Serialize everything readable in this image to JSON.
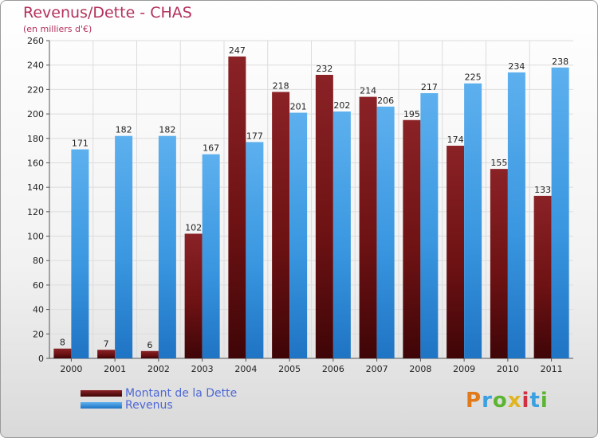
{
  "chart_data": {
    "type": "bar",
    "title": "Revenus/Dette - CHAS",
    "subtitle": "(en milliers d'€)",
    "categories": [
      "2000",
      "2001",
      "2002",
      "2003",
      "2004",
      "2005",
      "2006",
      "2007",
      "2008",
      "2009",
      "2010",
      "2011"
    ],
    "series": [
      {
        "name": "Montant de la Dette",
        "color": "#7a1416",
        "values": [
          8,
          7,
          6,
          102,
          247,
          218,
          232,
          214,
          195,
          174,
          155,
          133
        ]
      },
      {
        "name": "Revenus",
        "color": "#3a97e0",
        "values": [
          171,
          182,
          182,
          167,
          177,
          201,
          202,
          206,
          217,
          225,
          234,
          238
        ]
      }
    ],
    "ylim": [
      0,
      260
    ],
    "yticks": [
      0,
      20,
      40,
      60,
      80,
      100,
      120,
      140,
      160,
      180,
      200,
      220,
      240,
      260
    ],
    "grid": true,
    "legend_position": "bottom-left"
  },
  "logo": {
    "letters": [
      "P",
      "r",
      "o",
      "x",
      "i",
      "t",
      "i"
    ],
    "colors": [
      "#e07a1a",
      "#3aa0e0",
      "#5bb531",
      "#e0b520",
      "#d03040",
      "#3aa0e0",
      "#5bb531"
    ]
  }
}
